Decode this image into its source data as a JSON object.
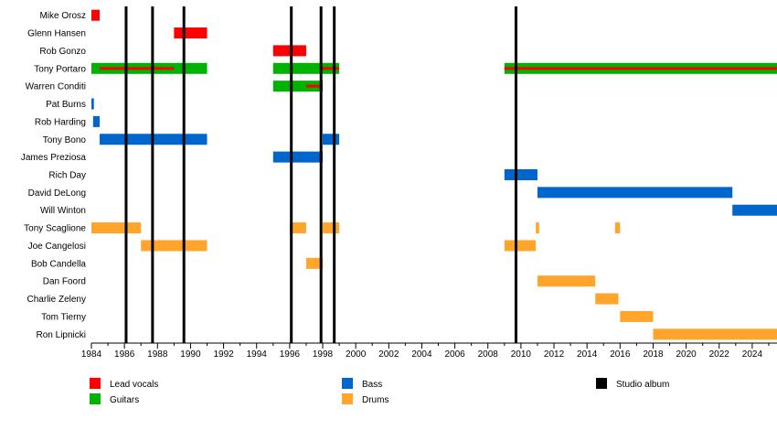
{
  "chart_data": {
    "type": "timeline",
    "xlim": [
      1984,
      2025.5
    ],
    "x_ticks": [
      "1984",
      "1986",
      "1988",
      "1990",
      "1992",
      "1994",
      "1996",
      "1998",
      "2000",
      "2002",
      "2004",
      "2006",
      "2008",
      "2010",
      "2012",
      "2014",
      "2016",
      "2018",
      "2020",
      "2022",
      "2024"
    ],
    "members": [
      "Mike Orosz",
      "Glenn Hansen",
      "Rob Gonzo",
      "Tony Portaro",
      "Warren Conditi",
      "Pat Burns",
      "Rob Harding",
      "Tony Bono",
      "James Preziosa",
      "Rich Day",
      "David DeLong",
      "Will Winton",
      "Tony Scaglione",
      "Joe Cangelosi",
      "Bob Candella",
      "Dan Foord",
      "Charlie Zeleny",
      "Tom Tierny",
      "Ron Lipnicki"
    ],
    "roles": [
      {
        "key": "vocals",
        "label": "Lead vocals",
        "color": "#ff0000"
      },
      {
        "key": "guitars",
        "label": "Guitars",
        "color": "#00b300"
      },
      {
        "key": "bass",
        "label": "Bass",
        "color": "#0066cc"
      },
      {
        "key": "drums",
        "label": "Drums",
        "color": "#ffa52c"
      },
      {
        "key": "album",
        "label": "Studio album",
        "color": "#000000"
      }
    ],
    "bars": [
      {
        "member": "Mike Orosz",
        "role": "vocals",
        "start": 1984.0,
        "end": 1984.5
      },
      {
        "member": "Glenn Hansen",
        "role": "vocals",
        "start": 1989.0,
        "end": 1991.0
      },
      {
        "member": "Rob Gonzo",
        "role": "vocals",
        "start": 1995.0,
        "end": 1997.0
      },
      {
        "member": "Tony Portaro",
        "role": "guitars",
        "start": 1984.0,
        "end": 1991.0
      },
      {
        "member": "Tony Portaro",
        "role": "vocals",
        "start": 1984.5,
        "end": 1989.0,
        "thin": true
      },
      {
        "member": "Tony Portaro",
        "role": "guitars",
        "start": 1995.0,
        "end": 1999.0
      },
      {
        "member": "Tony Portaro",
        "role": "vocals",
        "start": 1998.0,
        "end": 1999.0,
        "thin": true
      },
      {
        "member": "Tony Portaro",
        "role": "guitars",
        "start": 2009.0,
        "end": 2025.5
      },
      {
        "member": "Tony Portaro",
        "role": "vocals",
        "start": 2009.0,
        "end": 2025.5,
        "thin": true
      },
      {
        "member": "Warren Conditi",
        "role": "guitars",
        "start": 1995.0,
        "end": 1998.0
      },
      {
        "member": "Warren Conditi",
        "role": "vocals",
        "start": 1997.0,
        "end": 1998.0,
        "thin": true
      },
      {
        "member": "Pat Burns",
        "role": "bass",
        "start": 1984.0,
        "end": 1984.15
      },
      {
        "member": "Rob Harding",
        "role": "bass",
        "start": 1984.1,
        "end": 1984.5
      },
      {
        "member": "Tony Bono",
        "role": "bass",
        "start": 1984.5,
        "end": 1991.0
      },
      {
        "member": "Tony Bono",
        "role": "bass",
        "start": 1998.0,
        "end": 1999.0
      },
      {
        "member": "James Preziosa",
        "role": "bass",
        "start": 1995.0,
        "end": 1998.0
      },
      {
        "member": "Rich Day",
        "role": "bass",
        "start": 2009.0,
        "end": 2011.0
      },
      {
        "member": "David DeLong",
        "role": "bass",
        "start": 2011.0,
        "end": 2022.8
      },
      {
        "member": "Will Winton",
        "role": "bass",
        "start": 2022.8,
        "end": 2025.5
      },
      {
        "member": "Tony Scaglione",
        "role": "drums",
        "start": 1984.0,
        "end": 1987.0
      },
      {
        "member": "Tony Scaglione",
        "role": "drums",
        "start": 1996.0,
        "end": 1997.0
      },
      {
        "member": "Tony Scaglione",
        "role": "drums",
        "start": 1998.0,
        "end": 1999.0
      },
      {
        "member": "Tony Scaglione",
        "role": "drums",
        "start": 2010.9,
        "end": 2011.1
      },
      {
        "member": "Tony Scaglione",
        "role": "drums",
        "start": 2015.7,
        "end": 2016.0
      },
      {
        "member": "Joe Cangelosi",
        "role": "drums",
        "start": 1987.0,
        "end": 1991.0
      },
      {
        "member": "Joe Cangelosi",
        "role": "drums",
        "start": 2009.0,
        "end": 2010.9
      },
      {
        "member": "Bob Candella",
        "role": "drums",
        "start": 1997.0,
        "end": 1998.0
      },
      {
        "member": "Dan Foord",
        "role": "drums",
        "start": 2011.0,
        "end": 2014.5
      },
      {
        "member": "Charlie Zeleny",
        "role": "drums",
        "start": 2014.5,
        "end": 2015.9
      },
      {
        "member": "Tom Tierny",
        "role": "drums",
        "start": 2016.0,
        "end": 2018.0
      },
      {
        "member": "Ron Lipnicki",
        "role": "drums",
        "start": 2018.0,
        "end": 2025.5
      }
    ],
    "albums": [
      1986.1,
      1987.7,
      1989.6,
      1996.1,
      1997.9,
      1998.7,
      2009.7
    ]
  }
}
